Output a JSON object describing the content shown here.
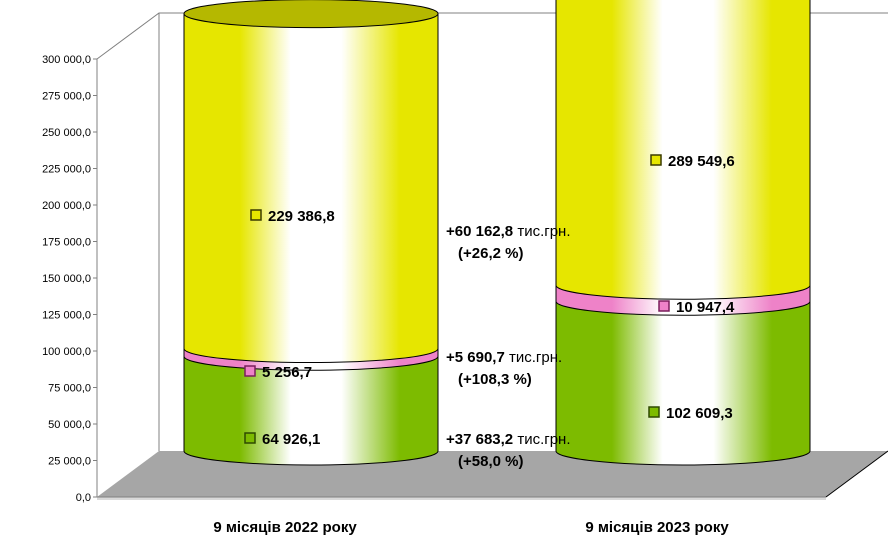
{
  "chart_data": {
    "type": "bar",
    "categories": [
      "9 місяців 2022 року",
      "9 місяців 2023 року"
    ],
    "series": [
      {
        "values": [
          64926.1,
          102609.3
        ]
      },
      {
        "values": [
          5256.7,
          10947.4
        ]
      },
      {
        "values": [
          229386.8,
          289549.6
        ]
      }
    ],
    "data_labels": [
      [
        "64 926,1",
        "102 609,3"
      ],
      [
        "5 256,7",
        "10 947,4"
      ],
      [
        "229 386,8",
        "289 549,6"
      ]
    ],
    "annotations": [
      {
        "change": "+37 683,2",
        "unit": " тис.грн.",
        "percent": "(+58,0 %)"
      },
      {
        "change": "+5 690,7",
        "unit": " тис.грн.",
        "percent": "(+108,3 %)"
      },
      {
        "change": "+60 162,8",
        "unit": " тис.грн.",
        "percent": "(+26,2 %)"
      }
    ],
    "y_ticks": [
      "0,0",
      "25 000,0",
      "50 000,0",
      "75 000,0",
      "100 000,0",
      "125 000,0",
      "150 000,0",
      "175 000,0",
      "200 000,0",
      "225 000,0",
      "250 000,0",
      "275 000,0",
      "300 000,0"
    ],
    "ylim": [
      0,
      300000
    ],
    "colors": {
      "series": [
        "#7dbb00",
        "#ee82c8",
        "#e6e600"
      ],
      "marker_border": [
        "#2e4a00",
        "#7a1e5c",
        "#3a3a00"
      ],
      "floor": "#a6a6a6",
      "axis": "#808080"
    },
    "grid": false,
    "legend": "none"
  }
}
